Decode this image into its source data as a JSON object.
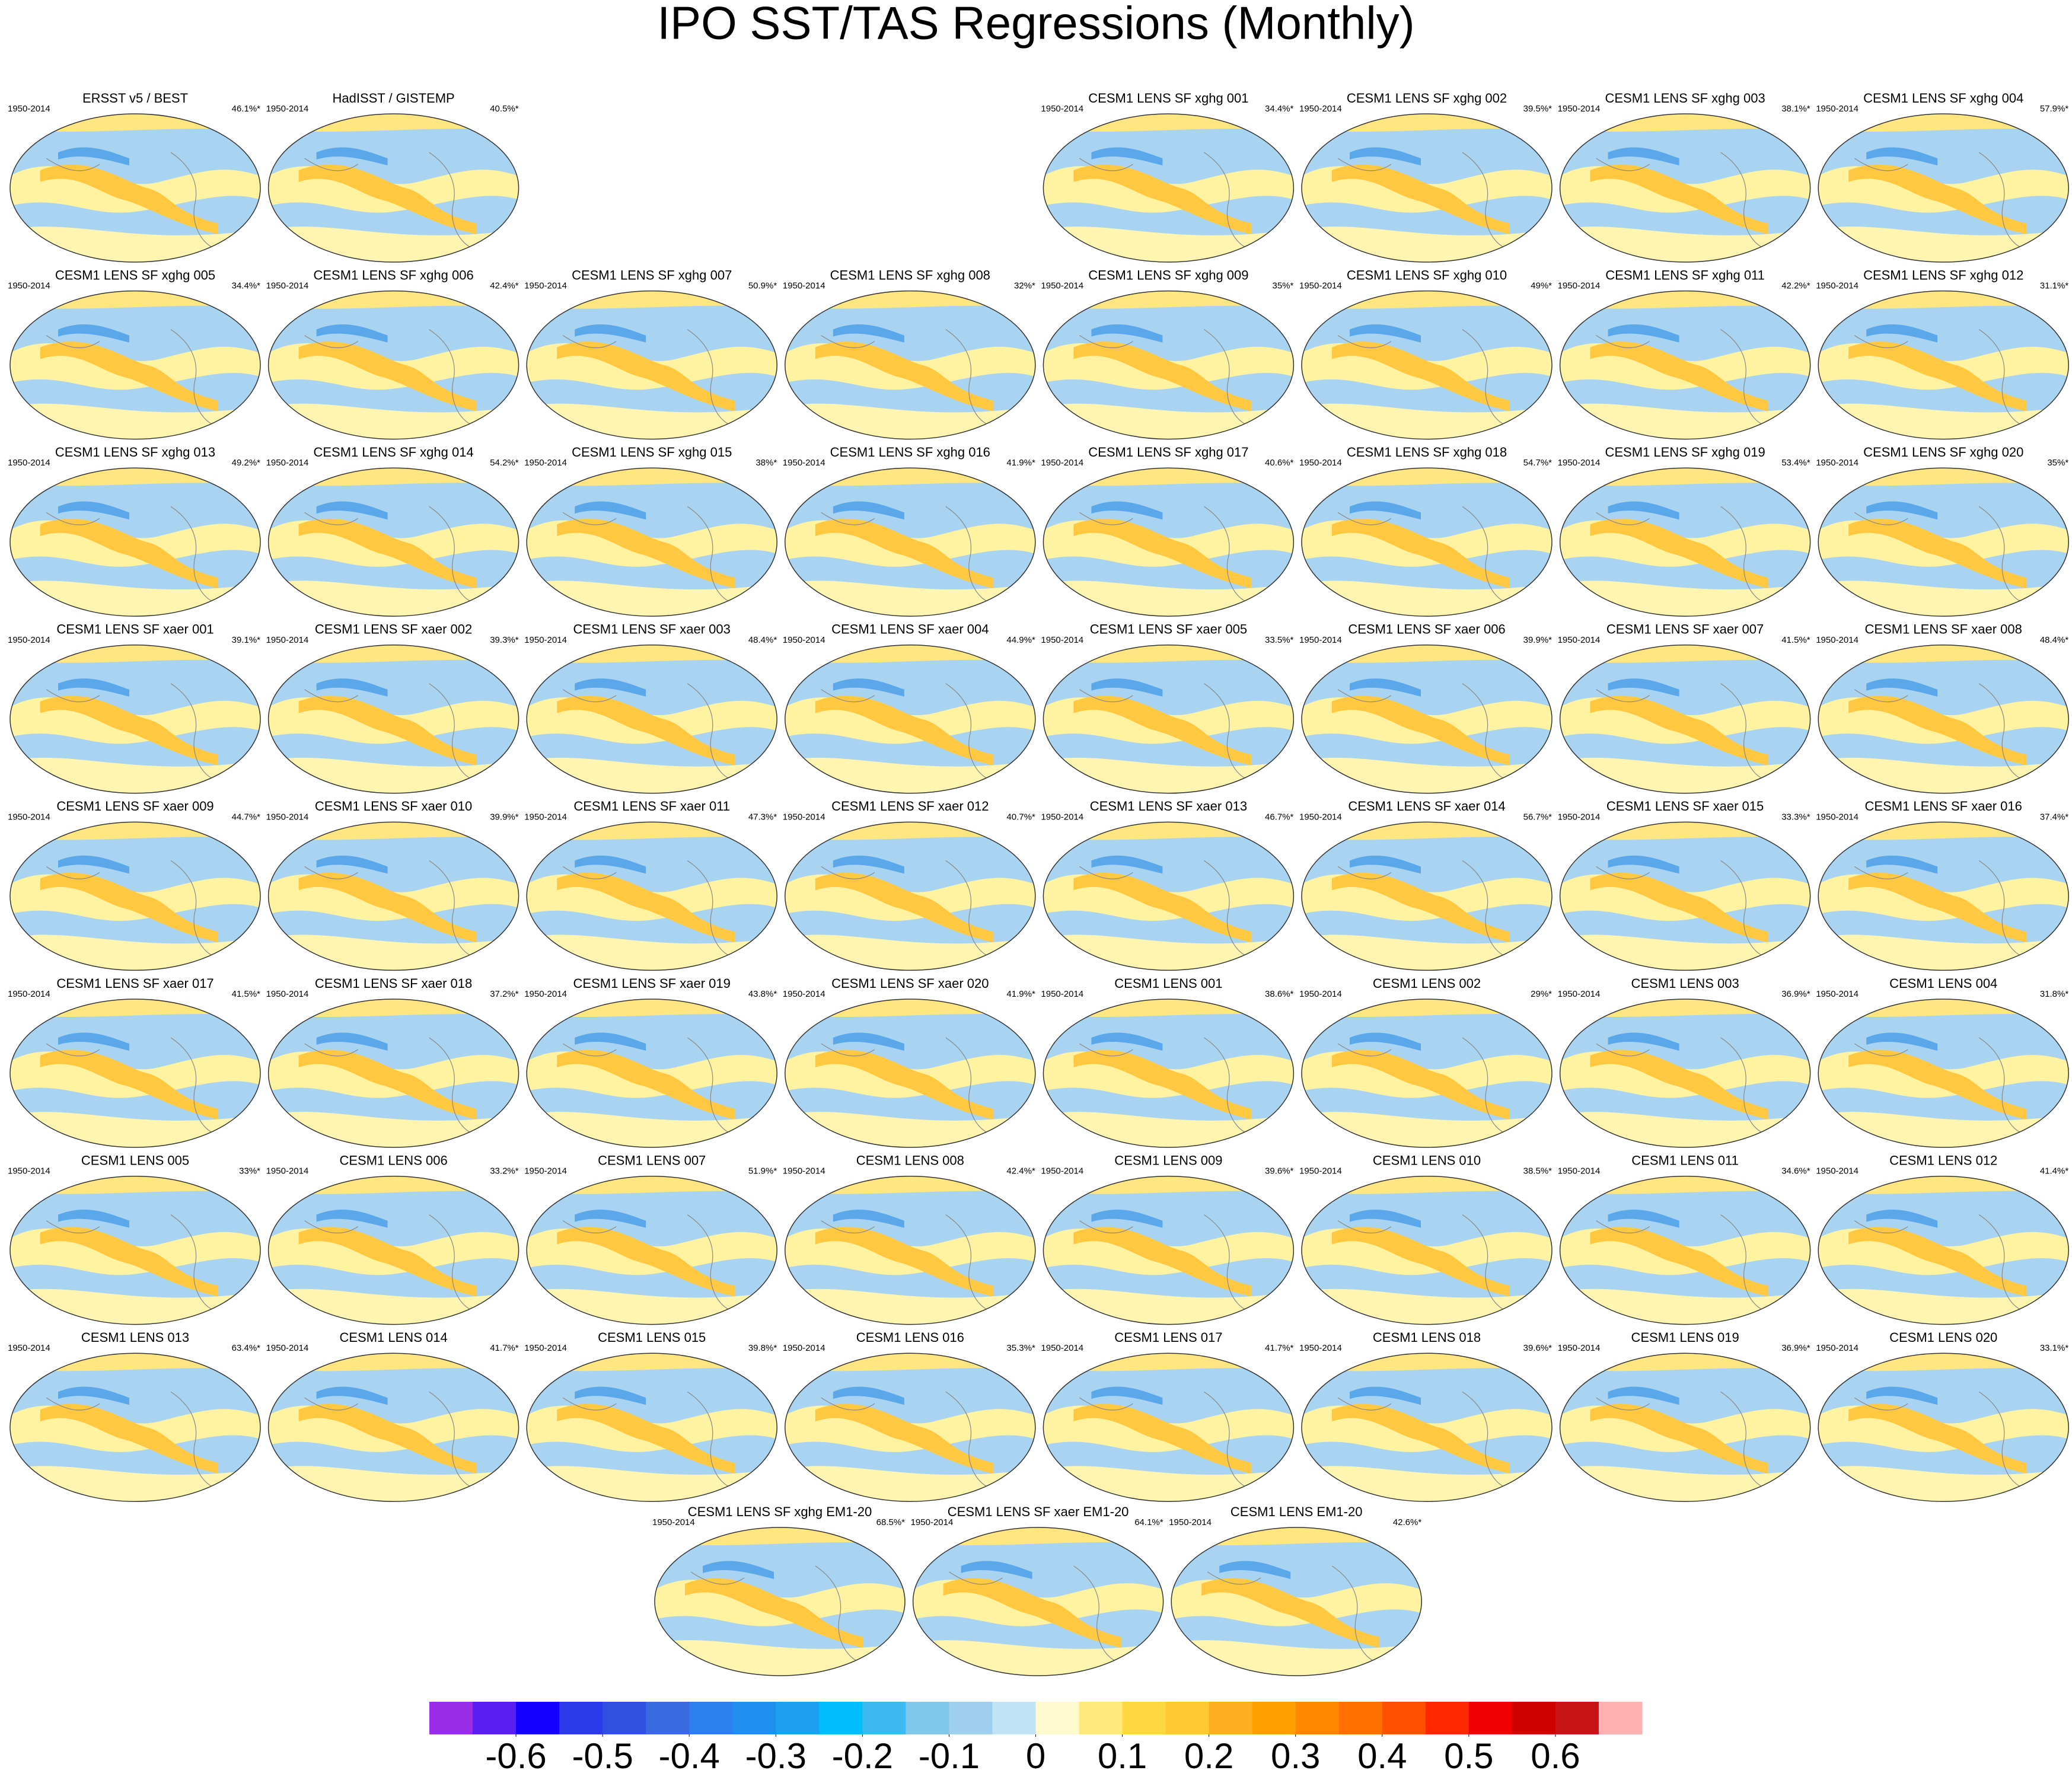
{
  "title": "IPO SST/TAS Regressions (Monthly)",
  "panels": [
    {
      "title": "ERSST v5 / BEST",
      "period": "1950-2014",
      "variance": "46.1%*"
    },
    {
      "title": "HadISST / GISTEMP",
      "period": "1950-2014",
      "variance": "40.5%*"
    },
    {
      "title": "CESM1 LENS SF xghg 001",
      "period": "1950-2014",
      "variance": "34.4%*"
    },
    {
      "title": "CESM1 LENS SF xghg 002",
      "period": "1950-2014",
      "variance": "39.5%*"
    },
    {
      "title": "CESM1 LENS SF xghg 003",
      "period": "1950-2014",
      "variance": "38.1%*"
    },
    {
      "title": "CESM1 LENS SF xghg 004",
      "period": "1950-2014",
      "variance": "57.9%*"
    },
    {
      "title": "CESM1 LENS SF xghg 005",
      "period": "1950-2014",
      "variance": "34.4%*"
    },
    {
      "title": "CESM1 LENS SF xghg 006",
      "period": "1950-2014",
      "variance": "42.4%*"
    },
    {
      "title": "CESM1 LENS SF xghg 007",
      "period": "1950-2014",
      "variance": "50.9%*"
    },
    {
      "title": "CESM1 LENS SF xghg 008",
      "period": "1950-2014",
      "variance": "32%*"
    },
    {
      "title": "CESM1 LENS SF xghg 009",
      "period": "1950-2014",
      "variance": "35%*"
    },
    {
      "title": "CESM1 LENS SF xghg 010",
      "period": "1950-2014",
      "variance": "49%*"
    },
    {
      "title": "CESM1 LENS SF xghg 011",
      "period": "1950-2014",
      "variance": "42.2%*"
    },
    {
      "title": "CESM1 LENS SF xghg 012",
      "period": "1950-2014",
      "variance": "31.1%*"
    },
    {
      "title": "CESM1 LENS SF xghg 013",
      "period": "1950-2014",
      "variance": "49.2%*"
    },
    {
      "title": "CESM1 LENS SF xghg 014",
      "period": "1950-2014",
      "variance": "54.2%*"
    },
    {
      "title": "CESM1 LENS SF xghg 015",
      "period": "1950-2014",
      "variance": "38%*"
    },
    {
      "title": "CESM1 LENS SF xghg 016",
      "period": "1950-2014",
      "variance": "41.9%*"
    },
    {
      "title": "CESM1 LENS SF xghg 017",
      "period": "1950-2014",
      "variance": "40.6%*"
    },
    {
      "title": "CESM1 LENS SF xghg 018",
      "period": "1950-2014",
      "variance": "54.7%*"
    },
    {
      "title": "CESM1 LENS SF xghg 019",
      "period": "1950-2014",
      "variance": "53.4%*"
    },
    {
      "title": "CESM1 LENS SF xghg 020",
      "period": "1950-2014",
      "variance": "35%*"
    },
    {
      "title": "CESM1 LENS SF xaer 001",
      "period": "1950-2014",
      "variance": "39.1%*"
    },
    {
      "title": "CESM1 LENS SF xaer 002",
      "period": "1950-2014",
      "variance": "39.3%*"
    },
    {
      "title": "CESM1 LENS SF xaer 003",
      "period": "1950-2014",
      "variance": "48.4%*"
    },
    {
      "title": "CESM1 LENS SF xaer 004",
      "period": "1950-2014",
      "variance": "44.9%*"
    },
    {
      "title": "CESM1 LENS SF xaer 005",
      "period": "1950-2014",
      "variance": "33.5%*"
    },
    {
      "title": "CESM1 LENS SF xaer 006",
      "period": "1950-2014",
      "variance": "39.9%*"
    },
    {
      "title": "CESM1 LENS SF xaer 007",
      "period": "1950-2014",
      "variance": "41.5%*"
    },
    {
      "title": "CESM1 LENS SF xaer 008",
      "period": "1950-2014",
      "variance": "48.4%*"
    },
    {
      "title": "CESM1 LENS SF xaer 009",
      "period": "1950-2014",
      "variance": "44.7%*"
    },
    {
      "title": "CESM1 LENS SF xaer 010",
      "period": "1950-2014",
      "variance": "39.9%*"
    },
    {
      "title": "CESM1 LENS SF xaer 011",
      "period": "1950-2014",
      "variance": "47.3%*"
    },
    {
      "title": "CESM1 LENS SF xaer 012",
      "period": "1950-2014",
      "variance": "40.7%*"
    },
    {
      "title": "CESM1 LENS SF xaer 013",
      "period": "1950-2014",
      "variance": "46.7%*"
    },
    {
      "title": "CESM1 LENS SF xaer 014",
      "period": "1950-2014",
      "variance": "56.7%*"
    },
    {
      "title": "CESM1 LENS SF xaer 015",
      "period": "1950-2014",
      "variance": "33.3%*"
    },
    {
      "title": "CESM1 LENS SF xaer 016",
      "period": "1950-2014",
      "variance": "37.4%*"
    },
    {
      "title": "CESM1 LENS SF xaer 017",
      "period": "1950-2014",
      "variance": "41.5%*"
    },
    {
      "title": "CESM1 LENS SF xaer 018",
      "period": "1950-2014",
      "variance": "37.2%*"
    },
    {
      "title": "CESM1 LENS SF xaer 019",
      "period": "1950-2014",
      "variance": "43.8%*"
    },
    {
      "title": "CESM1 LENS SF xaer 020",
      "period": "1950-2014",
      "variance": "41.9%*"
    },
    {
      "title": "CESM1 LENS 001",
      "period": "1950-2014",
      "variance": "38.6%*"
    },
    {
      "title": "CESM1 LENS 002",
      "period": "1950-2014",
      "variance": "29%*"
    },
    {
      "title": "CESM1 LENS 003",
      "period": "1950-2014",
      "variance": "36.9%*"
    },
    {
      "title": "CESM1 LENS 004",
      "period": "1950-2014",
      "variance": "31.8%*"
    },
    {
      "title": "CESM1 LENS 005",
      "period": "1950-2014",
      "variance": "33%*"
    },
    {
      "title": "CESM1 LENS 006",
      "period": "1950-2014",
      "variance": "33.2%*"
    },
    {
      "title": "CESM1 LENS 007",
      "period": "1950-2014",
      "variance": "51.9%*"
    },
    {
      "title": "CESM1 LENS 008",
      "period": "1950-2014",
      "variance": "42.4%*"
    },
    {
      "title": "CESM1 LENS 009",
      "period": "1950-2014",
      "variance": "39.6%*"
    },
    {
      "title": "CESM1 LENS 010",
      "period": "1950-2014",
      "variance": "38.5%*"
    },
    {
      "title": "CESM1 LENS 011",
      "period": "1950-2014",
      "variance": "34.6%*"
    },
    {
      "title": "CESM1 LENS 012",
      "period": "1950-2014",
      "variance": "41.4%*"
    },
    {
      "title": "CESM1 LENS 013",
      "period": "1950-2014",
      "variance": "63.4%*"
    },
    {
      "title": "CESM1 LENS 014",
      "period": "1950-2014",
      "variance": "41.7%*"
    },
    {
      "title": "CESM1 LENS 015",
      "period": "1950-2014",
      "variance": "39.8%*"
    },
    {
      "title": "CESM1 LENS 016",
      "period": "1950-2014",
      "variance": "35.3%*"
    },
    {
      "title": "CESM1 LENS 017",
      "period": "1950-2014",
      "variance": "41.7%*"
    },
    {
      "title": "CESM1 LENS 018",
      "period": "1950-2014",
      "variance": "39.6%*"
    },
    {
      "title": "CESM1 LENS 019",
      "period": "1950-2014",
      "variance": "36.9%*"
    },
    {
      "title": "CESM1 LENS 020",
      "period": "1950-2014",
      "variance": "33.1%*"
    },
    {
      "title": "CESM1 LENS SF xghg EM1-20",
      "period": "1950-2014",
      "variance": "68.5%*"
    },
    {
      "title": "CESM1 LENS SF xaer EM1-20",
      "period": "1950-2014",
      "variance": "64.1%*"
    },
    {
      "title": "CESM1 LENS EM1-20",
      "period": "1950-2014",
      "variance": "42.6%*"
    }
  ],
  "colorbar": {
    "lim": [
      -0.7,
      0.7
    ],
    "colors": [
      "#9a2ee8",
      "#5a1ef0",
      "#1400ff",
      "#2a3ae8",
      "#3050e0",
      "#3a6ae0",
      "#2e7ff0",
      "#1f8ff0",
      "#1ea0f0",
      "#00bfff",
      "#40b8f0",
      "#80c8ec",
      "#a0d0f0",
      "#c0e4f5",
      "#fffacd",
      "#ffe97a",
      "#ffd840",
      "#ffc830",
      "#ffb020",
      "#ffa000",
      "#ff8800",
      "#ff7000",
      "#ff5000",
      "#ff2800",
      "#f00000",
      "#d00000",
      "#c81414",
      "#ffb0b0"
    ],
    "ticks": [
      -0.6,
      -0.5,
      -0.4,
      -0.3,
      -0.2,
      -0.1,
      0,
      0.1,
      0.2,
      0.3,
      0.4,
      0.5,
      0.6
    ]
  }
}
